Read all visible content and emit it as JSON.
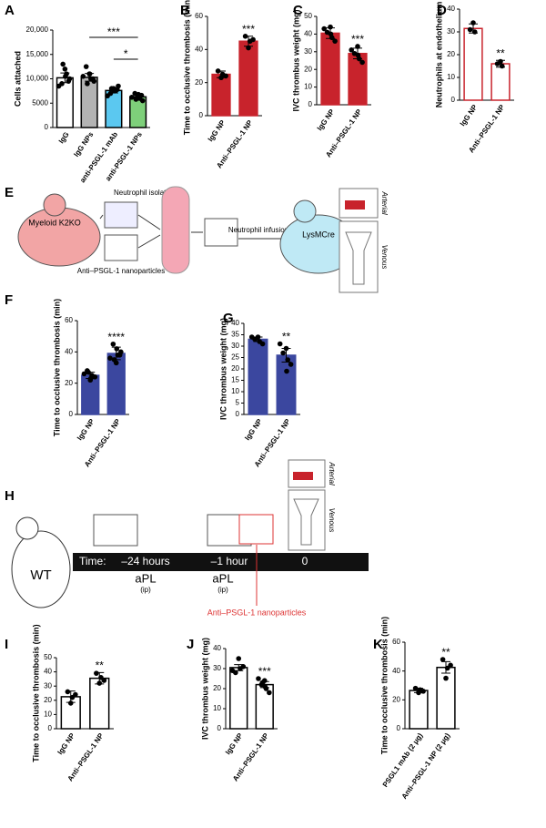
{
  "chart_data": [
    {
      "type": "bar",
      "label": "A",
      "ylabel": "Cells attached",
      "categories": [
        "IgG",
        "IgG NPs",
        "anti-PSGL-1 mAb",
        "anti-PSGL-1 NPs"
      ],
      "values": [
        10200,
        10300,
        7600,
        6300
      ],
      "errors": [
        1000,
        800,
        500,
        400
      ],
      "bar_colors": [
        "#ffffff",
        "#b3b3b3",
        "#5bc8f0",
        "#7ed07a"
      ],
      "edge_color": "#000000",
      "points": [
        [
          12000,
          11000,
          9000,
          10000,
          8500,
          10500,
          13000,
          9500
        ],
        [
          11000,
          10000,
          12500,
          9500,
          10500,
          11000,
          9000,
          10000
        ],
        [
          8000,
          7500,
          7000,
          8500,
          6500,
          7500,
          8000,
          7800
        ],
        [
          6500,
          6000,
          7000,
          5500,
          6200,
          6800,
          5800,
          6600
        ]
      ],
      "ylim": [
        0,
        20000
      ],
      "yticks": [
        0,
        5000,
        {
          "value": 10000,
          "label": "10,000"
        },
        {
          "value": 15000,
          "label": "15,000"
        },
        {
          "value": 20000,
          "label": "20,000"
        }
      ],
      "annotations": [
        "***",
        "*"
      ]
    },
    {
      "type": "bar",
      "label": "B",
      "ylabel": "Time to occlusive thrombosis (min)",
      "categories": [
        "IgG NP",
        "Anti–PSGL-1 NP"
      ],
      "values": [
        25,
        45
      ],
      "errors": [
        2,
        3
      ],
      "bar_colors": [
        "#c8232c",
        "#c8232c"
      ],
      "edge_color": "#c8232c",
      "points": [
        [
          23,
          25,
          27,
          24
        ],
        [
          41,
          45,
          48,
          46
        ]
      ],
      "ylim": [
        0,
        60
      ],
      "yticks": [
        0,
        20,
        40,
        60
      ],
      "annotations": [
        "***"
      ]
    },
    {
      "type": "bar",
      "label": "C",
      "ylabel": "IVC thrombus weight (mg)",
      "categories": [
        "IgG NP",
        "Anti–PSGL-1 NP"
      ],
      "values": [
        40.5,
        29
      ],
      "errors": [
        3,
        3
      ],
      "bar_colors": [
        "#c8232c",
        "#c8232c"
      ],
      "edge_color": "#c8232c",
      "points": [
        [
          44,
          38,
          41,
          36,
          43,
          40
        ],
        [
          33,
          26,
          29,
          24,
          31,
          28
        ]
      ],
      "ylim": [
        0,
        50
      ],
      "yticks": [
        0,
        10,
        20,
        30,
        40,
        50
      ],
      "annotations": [
        "***"
      ]
    },
    {
      "type": "bar",
      "label": "D",
      "ylabel": "Neutrophils at endothelium",
      "categories": [
        "IgG NP",
        "Anti–PSGL-1 NP"
      ],
      "values": [
        31.5,
        16
      ],
      "errors": [
        2,
        1.5
      ],
      "bar_colors": [
        "#ffffff",
        "#ffffff"
      ],
      "edge_color": "#c8232c",
      "points": [
        [
          34,
          30,
          31
        ],
        [
          17,
          15,
          16
        ]
      ],
      "ylim": [
        0,
        40
      ],
      "yticks": [
        0,
        10,
        20,
        30,
        40
      ],
      "annotations": [
        "**"
      ]
    },
    {
      "type": "bar",
      "label": "F",
      "ylabel": "Time to occlusive thrombosis (min)",
      "categories": [
        "IgG NP",
        "Anti–PSGL-1 NP"
      ],
      "values": [
        25,
        39
      ],
      "errors": [
        2,
        4
      ],
      "bar_colors": [
        "#3b479f",
        "#3b479f"
      ],
      "edge_color": "#3b479f",
      "points": [
        [
          22,
          25,
          28,
          24,
          26,
          23,
          27
        ],
        [
          33,
          38,
          45,
          40,
          36,
          42,
          35,
          38
        ]
      ],
      "ylim": [
        0,
        60
      ],
      "yticks": [
        0,
        20,
        40,
        60
      ],
      "annotations": [
        "****"
      ]
    },
    {
      "type": "bar",
      "label": "G",
      "ylabel": "IVC thrombus weight (mg)",
      "categories": [
        "IgG NP",
        "Anti–PSGL-1 NP"
      ],
      "values": [
        33,
        26
      ],
      "errors": [
        1,
        3
      ],
      "bar_colors": [
        "#3b479f",
        "#3b479f"
      ],
      "edge_color": "#3b479f",
      "points": [
        [
          34,
          32,
          33,
          31,
          34
        ],
        [
          29,
          24,
          27,
          22,
          31,
          19
        ]
      ],
      "ylim": [
        0,
        40
      ],
      "yticks": [
        0,
        5,
        10,
        15,
        20,
        25,
        30,
        35,
        40
      ],
      "annotations": [
        "**"
      ]
    },
    {
      "type": "bar",
      "label": "I",
      "ylabel": "Time to occlusive thrombosis (min)",
      "categories": [
        "IgG NP",
        "Anti–PSGL-1 NP"
      ],
      "values": [
        22.5,
        35.5
      ],
      "errors": [
        4,
        4
      ],
      "bar_colors": [
        "#ffffff",
        "#ffffff"
      ],
      "edge_color": "#000000",
      "points": [
        [
          18,
          22,
          26,
          24
        ],
        [
          32,
          36,
          39,
          34
        ]
      ],
      "ylim": [
        0,
        50
      ],
      "yticks": [
        0,
        10,
        20,
        30,
        40,
        50
      ],
      "annotations": [
        "**"
      ]
    },
    {
      "type": "bar",
      "label": "J",
      "ylabel": "IVC thrombus weight (mg)",
      "categories": [
        "IgG NP",
        "Anti–PSGL-1 NP"
      ],
      "values": [
        30.5,
        22
      ],
      "errors": [
        1.5,
        1.5
      ],
      "bar_colors": [
        "#ffffff",
        "#ffffff"
      ],
      "edge_color": "#000000",
      "points": [
        [
          35,
          30,
          28,
          31,
          29
        ],
        [
          24,
          20,
          22,
          18,
          25,
          21,
          23
        ]
      ],
      "ylim": [
        0,
        40
      ],
      "yticks": [
        0,
        10,
        20,
        30,
        40
      ],
      "annotations": [
        "***"
      ]
    },
    {
      "type": "bar",
      "label": "K",
      "ylabel": "Time to occlusive thrombosis (min)",
      "categories": [
        "PSGL1 mAb (2 μg)",
        "Anti–PSGL-1 NP (2 μg)"
      ],
      "values": [
        26.5,
        42.5
      ],
      "errors": [
        1.5,
        4
      ],
      "bar_colors": [
        "#ffffff",
        "#ffffff"
      ],
      "edge_color": "#000000",
      "points": [
        [
          25,
          27,
          28,
          26
        ],
        [
          35,
          42,
          48,
          44
        ]
      ],
      "ylim": [
        0,
        60
      ],
      "yticks": [
        0,
        20,
        40,
        60
      ],
      "annotations": [
        "**"
      ]
    }
  ],
  "panel_e": {
    "label": "E",
    "donor": "Myeloid K2KO",
    "isolation": "Neutrophil isolation",
    "nanoparticles": "Anti–PSGL-1 nanoparticles",
    "infusion": "Neutrophil infusion",
    "recipient": "LysMCre",
    "arterial": "Arterial",
    "venous": "Venous"
  },
  "panel_h": {
    "label": "H",
    "mouse": "WT",
    "time_label": "Time:",
    "times": [
      "–24 hours",
      "–1 hour",
      "0"
    ],
    "treatment": "aPL",
    "route": "(ip)",
    "nanoparticles": "Anti–PSGL-1 nanoparticles",
    "arterial": "Arterial",
    "venous": "Venous"
  }
}
